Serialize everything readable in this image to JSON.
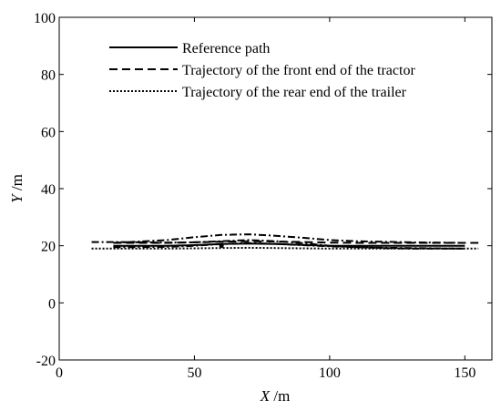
{
  "chart_data": {
    "type": "line",
    "title": "",
    "xlabel": {
      "var": "X",
      "unit": " /m"
    },
    "ylabel": {
      "var": "Y",
      "unit": " /m"
    },
    "xlim": [
      0,
      160
    ],
    "ylim": [
      -20,
      100
    ],
    "xticks": [
      0,
      50,
      100,
      150
    ],
    "yticks": [
      -20,
      0,
      20,
      40,
      60,
      80,
      100
    ],
    "grid": false,
    "legend_position": "top-left",
    "series": [
      {
        "name": "Reference path",
        "style": "solid",
        "x": [
          20,
          30,
          40,
          50,
          60,
          70,
          80,
          90,
          100,
          110,
          120,
          130,
          140,
          150
        ],
        "y": [
          20,
          20,
          20,
          20.2,
          20.6,
          20.8,
          20.6,
          20.3,
          20,
          20,
          20,
          20,
          20,
          20
        ]
      },
      {
        "name": "Trajectory of the front end of the tractor",
        "style": "dashed",
        "x": [
          20,
          30,
          40,
          50,
          60,
          70,
          80,
          90,
          100,
          110,
          120,
          130,
          140,
          150,
          155
        ],
        "y": [
          21,
          21,
          21,
          21.2,
          21.4,
          21.6,
          21.5,
          21.3,
          21.1,
          21,
          21,
          21,
          21,
          21,
          21
        ]
      },
      {
        "name": "Trajectory of the rear end of the trailer",
        "style": "dotted",
        "x": [
          12,
          20,
          30,
          40,
          50,
          60,
          70,
          80,
          90,
          100,
          110,
          120,
          130,
          140,
          150,
          155
        ],
        "y": [
          19,
          19,
          19,
          19,
          19.1,
          19.2,
          19.3,
          19.2,
          19.1,
          19,
          19,
          19,
          19,
          19,
          19,
          19
        ]
      },
      {
        "name": "",
        "style": "dashdot",
        "x": [
          20,
          30,
          40,
          50,
          60,
          70,
          80,
          90,
          100,
          110,
          120,
          130,
          140,
          150
        ],
        "y": [
          21,
          21.5,
          22,
          23,
          23.8,
          24,
          23.5,
          22.8,
          22,
          21.6,
          21.4,
          21.2,
          21.1,
          21
        ]
      },
      {
        "name": "",
        "style": "dashdot",
        "x": [
          12,
          20,
          30,
          40,
          50,
          60,
          70,
          80,
          90,
          100,
          110,
          120,
          130,
          140,
          150
        ],
        "y": [
          21.3,
          21.3,
          21.2,
          21.1,
          21.2,
          21.6,
          22,
          21.6,
          20.9,
          20,
          19.5,
          19.2,
          19,
          19,
          19
        ]
      },
      {
        "name": "",
        "style": "dashdot",
        "x": [
          20,
          30,
          40,
          50,
          60,
          70,
          80,
          90,
          100,
          110,
          120,
          130,
          140,
          150
        ],
        "y": [
          19.5,
          19.5,
          19.6,
          20,
          20.6,
          20.9,
          20.7,
          20.2,
          19.8,
          19.5,
          19.3,
          19.2,
          19.1,
          19
        ]
      }
    ],
    "points": [
      {
        "x": 60,
        "y": 20
      }
    ]
  }
}
